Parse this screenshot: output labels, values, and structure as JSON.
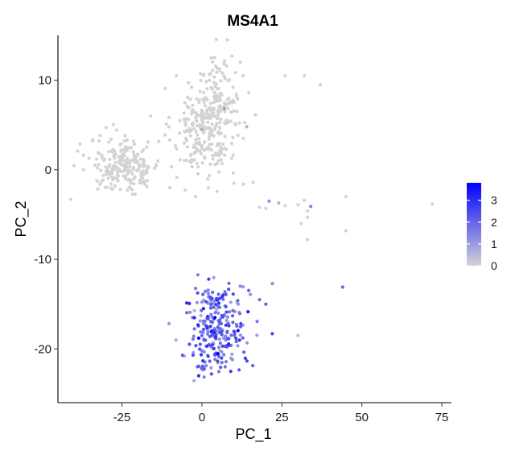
{
  "chart_data": {
    "type": "scatter",
    "title": "MS4A1",
    "xlabel": "PC_1",
    "ylabel": "PC_2",
    "xlim": [
      -45,
      78
    ],
    "ylim": [
      -26,
      15
    ],
    "x_ticks": [
      -25,
      0,
      25,
      50,
      75
    ],
    "y_ticks": [
      -20,
      -10,
      0,
      10
    ],
    "x_tick_labels": [
      "-25",
      "0",
      "25",
      "50",
      "75"
    ],
    "y_tick_labels": [
      "-20",
      "-10",
      "0",
      "10"
    ],
    "grid": false,
    "legend": {
      "placement": "right",
      "type": "colorbar",
      "ticks": [
        0,
        1,
        2,
        3
      ],
      "tick_labels": [
        "0",
        "1",
        "2",
        "3"
      ],
      "range": [
        0,
        3.8
      ],
      "color_low": "#d3d3d3",
      "color_high": "#0000ff"
    },
    "clusters": [
      {
        "cx": 0.6,
        "cy": 4.2,
        "sx": 5.0,
        "sy": 2.5,
        "n": 200,
        "expr": 0
      },
      {
        "cx": 5.0,
        "cy": 7.8,
        "sx": 3.8,
        "sy": 2.5,
        "n": 130,
        "expr": 0
      },
      {
        "cx": -24.0,
        "cy": 0.5,
        "sx": 5.5,
        "sy": 1.5,
        "n": 220,
        "expr": 0
      },
      {
        "cx": 4.5,
        "cy": -17.6,
        "sx": 4.5,
        "sy": 2.4,
        "n": 260,
        "expr": 1.9
      }
    ],
    "sparse_points": [
      {
        "x": -41,
        "y": -3.3,
        "v": 0
      },
      {
        "x": -37,
        "y": 0.0,
        "v": 0
      },
      {
        "x": -16,
        "y": 6.0,
        "v": 0
      },
      {
        "x": -10,
        "y": -2.0,
        "v": 0
      },
      {
        "x": -3,
        "y": 1.0,
        "v": 0
      },
      {
        "x": -2,
        "y": -3.0,
        "v": 0
      },
      {
        "x": 2,
        "y": -2.0,
        "v": 0
      },
      {
        "x": 10,
        "y": -1.5,
        "v": 0
      },
      {
        "x": 13,
        "y": -1.6,
        "v": 0
      },
      {
        "x": 16,
        "y": -1.4,
        "v": 0
      },
      {
        "x": 18,
        "y": -4.2,
        "v": 0
      },
      {
        "x": 20,
        "y": -4.3,
        "v": 0
      },
      {
        "x": 21,
        "y": -3.5,
        "v": 1.2
      },
      {
        "x": 24,
        "y": -3.7,
        "v": 0.6
      },
      {
        "x": 26,
        "y": -4.0,
        "v": 0
      },
      {
        "x": 30,
        "y": -3.9,
        "v": 0
      },
      {
        "x": 31,
        "y": -6.0,
        "v": 0
      },
      {
        "x": 32,
        "y": -3.4,
        "v": 0
      },
      {
        "x": 33,
        "y": -4.6,
        "v": 0
      },
      {
        "x": 33,
        "y": -5.3,
        "v": 0
      },
      {
        "x": 33,
        "y": -7.8,
        "v": 0
      },
      {
        "x": 34,
        "y": -4.1,
        "v": 1.4
      },
      {
        "x": 45,
        "y": -3.0,
        "v": 0
      },
      {
        "x": 45,
        "y": -6.8,
        "v": 0
      },
      {
        "x": 72,
        "y": -3.8,
        "v": 0
      },
      {
        "x": 26,
        "y": 10.5,
        "v": 0
      },
      {
        "x": 32,
        "y": 10.5,
        "v": 0
      },
      {
        "x": 37,
        "y": 9.5,
        "v": 0
      },
      {
        "x": 12,
        "y": 12.0,
        "v": 0
      },
      {
        "x": 3,
        "y": 12.5,
        "v": 0
      },
      {
        "x": -8,
        "y": 10.5,
        "v": 0
      },
      {
        "x": 8,
        "y": 14.5,
        "v": 0
      },
      {
        "x": 44,
        "y": -13.1,
        "v": 2.0
      },
      {
        "x": 30,
        "y": -18.5,
        "v": 0.3
      },
      {
        "x": 22,
        "y": -18.3,
        "v": 2.6
      },
      {
        "x": 22,
        "y": -12.7,
        "v": 1.4
      },
      {
        "x": 18,
        "y": -14.5,
        "v": 1.8
      },
      {
        "x": 12,
        "y": -13.0,
        "v": 1.3
      },
      {
        "x": 20,
        "y": -15.0,
        "v": 2.2
      },
      {
        "x": 3,
        "y": -22.8,
        "v": 2.4
      },
      {
        "x": -1,
        "y": -23.0,
        "v": 3.0
      },
      {
        "x": 9,
        "y": -22.5,
        "v": 2.7
      },
      {
        "x": -1,
        "y": -18.8,
        "v": 3.8
      },
      {
        "x": 0.5,
        "y": -15.5,
        "v": 3.2
      },
      {
        "x": 7,
        "y": 6.8,
        "v": 1.1
      },
      {
        "x": 0,
        "y": 4.5,
        "v": 0.7
      },
      {
        "x": 14,
        "y": 4.8,
        "v": 0.6
      }
    ]
  }
}
